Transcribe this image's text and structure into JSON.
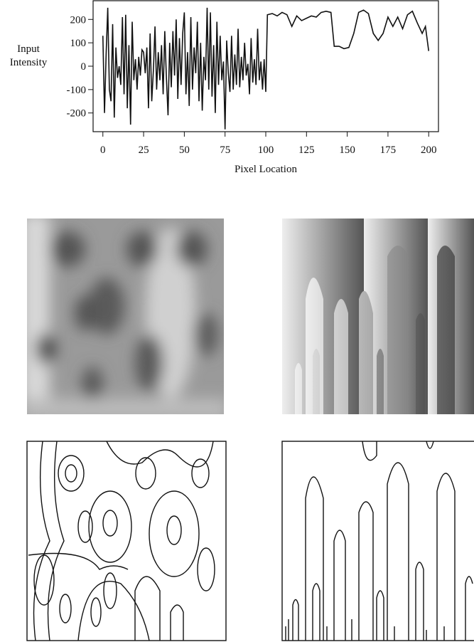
{
  "chart_data": {
    "type": "line",
    "xlabel": "Pixel Location",
    "ylabel": "Input Intensity",
    "color": "#111111",
    "xlim": [
      -6,
      206
    ],
    "ylim": [
      -280,
      280
    ],
    "xticks": [
      0,
      25,
      50,
      75,
      100,
      125,
      150,
      175,
      200
    ],
    "yticks": [
      200,
      100,
      0,
      -100,
      -200
    ],
    "x": [
      0,
      1,
      2,
      3,
      4,
      5,
      6,
      7,
      8,
      9,
      10,
      11,
      12,
      13,
      14,
      15,
      16,
      17,
      18,
      19,
      20,
      21,
      22,
      23,
      24,
      25,
      26,
      27,
      28,
      29,
      30,
      31,
      32,
      33,
      34,
      35,
      36,
      37,
      38,
      39,
      40,
      41,
      42,
      43,
      44,
      45,
      46,
      47,
      48,
      49,
      50,
      51,
      52,
      53,
      54,
      55,
      56,
      57,
      58,
      59,
      60,
      61,
      62,
      63,
      64,
      65,
      66,
      67,
      68,
      69,
      70,
      71,
      72,
      73,
      74,
      75,
      76,
      77,
      78,
      79,
      80,
      81,
      82,
      83,
      84,
      85,
      86,
      87,
      88,
      89,
      90,
      91,
      92,
      93,
      94,
      95,
      96,
      97,
      98,
      99,
      100,
      101,
      104,
      107,
      110,
      113,
      116,
      119,
      122,
      125,
      128,
      131,
      134,
      137,
      140,
      142,
      145,
      148,
      151,
      154,
      157,
      160,
      163,
      166,
      169,
      172,
      175,
      178,
      181,
      184,
      187,
      190,
      193,
      196,
      198,
      200
    ],
    "values": [
      130,
      -200,
      50,
      250,
      -100,
      -150,
      180,
      -220,
      80,
      -50,
      0,
      -80,
      210,
      -120,
      220,
      -180,
      90,
      -250,
      190,
      -60,
      30,
      -100,
      40,
      -40,
      70,
      60,
      -30,
      80,
      -180,
      140,
      -150,
      -20,
      170,
      -100,
      60,
      -60,
      90,
      -120,
      150,
      -50,
      -210,
      100,
      -90,
      150,
      -40,
      200,
      -140,
      120,
      -80,
      140,
      230,
      -120,
      60,
      -170,
      210,
      -100,
      80,
      -30,
      190,
      -150,
      100,
      -190,
      40,
      -60,
      250,
      -100,
      230,
      -130,
      90,
      -200,
      190,
      -80,
      130,
      -60,
      20,
      -270,
      110,
      -30,
      -110,
      130,
      -100,
      50,
      -80,
      160,
      -90,
      40,
      -60,
      100,
      -40,
      10,
      -120,
      120,
      -70,
      30,
      -80,
      160,
      -60,
      20,
      -100,
      30,
      -110,
      220,
      225,
      215,
      230,
      220,
      170,
      215,
      195,
      205,
      215,
      210,
      230,
      235,
      230,
      85,
      85,
      75,
      80,
      140,
      230,
      240,
      225,
      140,
      110,
      140,
      210,
      170,
      210,
      160,
      220,
      235,
      185,
      140,
      170,
      65
    ]
  }
}
